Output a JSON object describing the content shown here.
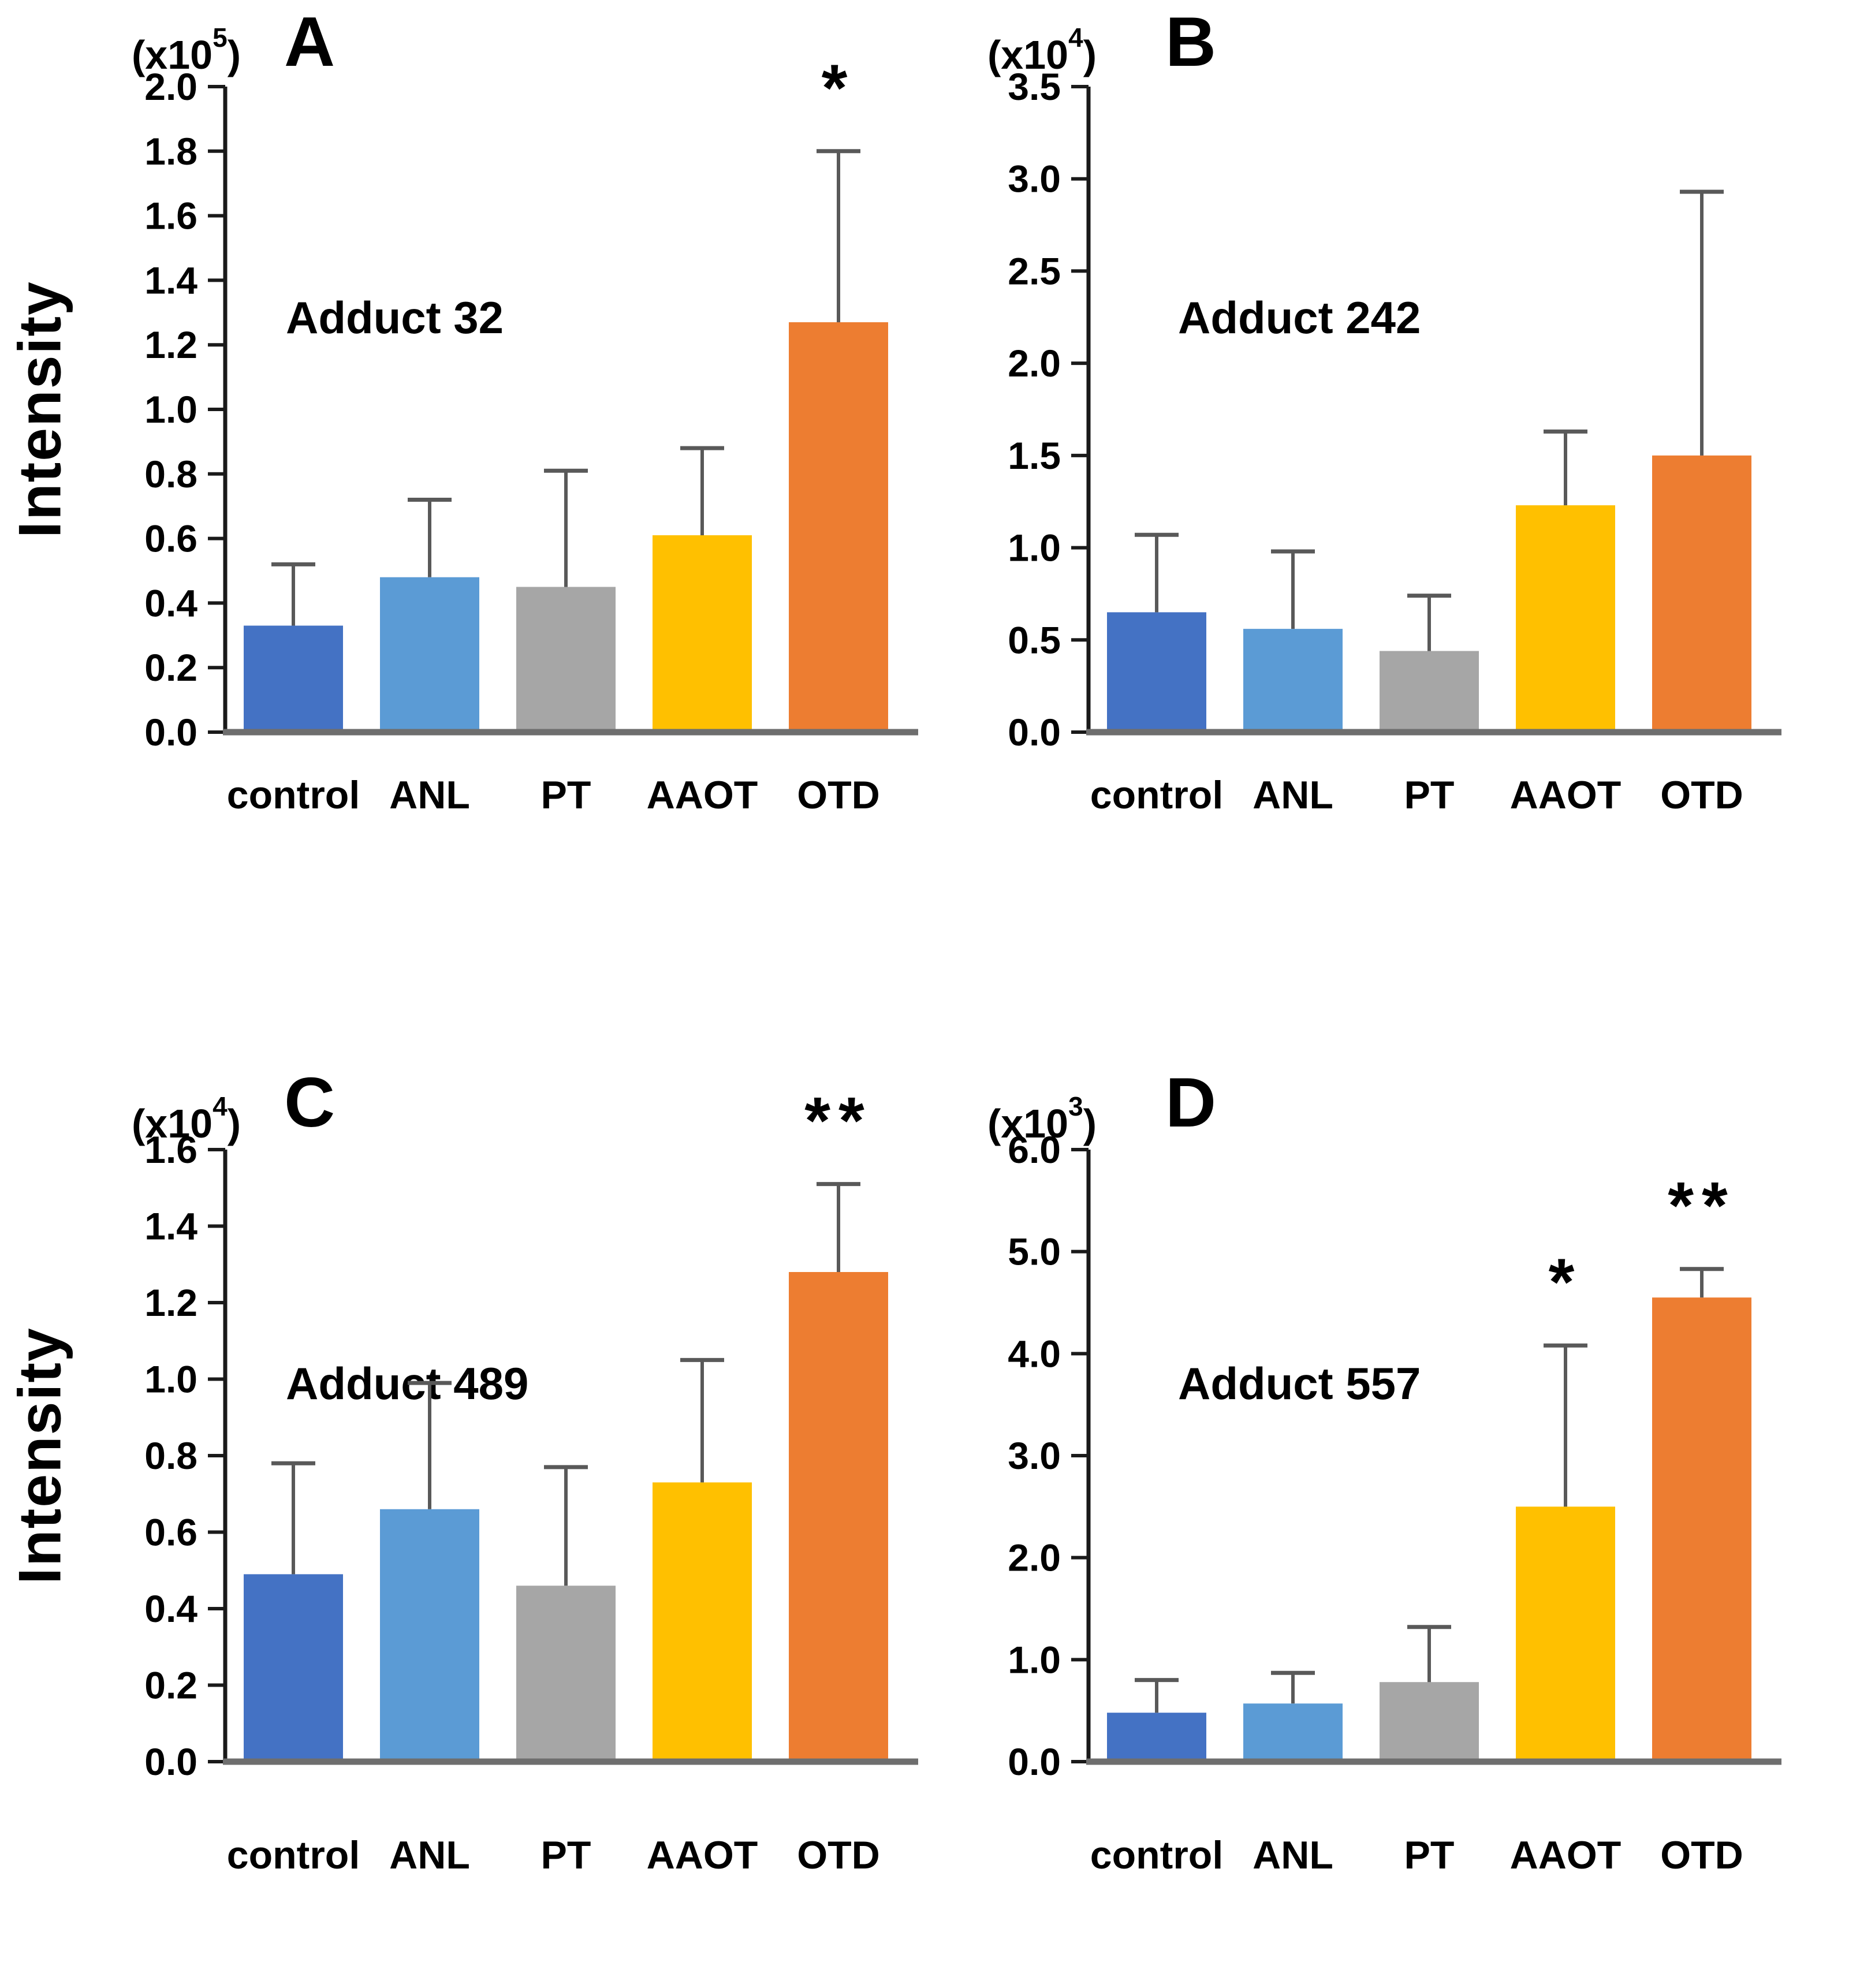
{
  "figure": {
    "y_axis_label": "Intensity",
    "background_color": "#ffffff",
    "text_color": "#000000",
    "axis_color": "#1a1a1a",
    "baseline_color": "#6e6e6e",
    "error_bar_color": "#595959",
    "categories": [
      "control",
      "ANL",
      "PT",
      "AAOT",
      "OTD"
    ],
    "bar_colors": [
      "#4472C4",
      "#5B9BD5",
      "#A6A6A6",
      "#FFC000",
      "#ED7D31"
    ]
  },
  "chart_data": [
    {
      "type": "bar",
      "panel": "A",
      "title": "Adduct 32",
      "scale_prefix": "(x10",
      "scale_exp": "5",
      "scale_suffix": ")",
      "unit_multiplier": "x10^5",
      "categories": [
        "control",
        "ANL",
        "PT",
        "AAOT",
        "OTD"
      ],
      "values": [
        0.33,
        0.48,
        0.45,
        0.61,
        1.27
      ],
      "error_upper": [
        0.19,
        0.24,
        0.36,
        0.27,
        0.53
      ],
      "significance": [
        "",
        "",
        "",
        "",
        "*"
      ],
      "ylabel": "Intensity",
      "xlabel": "",
      "ylim": [
        0,
        2.0
      ],
      "ytick_step": 0.2,
      "grid": false,
      "legend": false,
      "error_bars": "upper-only"
    },
    {
      "type": "bar",
      "panel": "B",
      "title": "Adduct 242",
      "scale_prefix": "(x10",
      "scale_exp": "4",
      "scale_suffix": ")",
      "unit_multiplier": "x10^4",
      "categories": [
        "control",
        "ANL",
        "PT",
        "AAOT",
        "OTD"
      ],
      "values": [
        0.65,
        0.56,
        0.44,
        1.23,
        1.5
      ],
      "error_upper": [
        0.42,
        0.42,
        0.3,
        0.4,
        1.43
      ],
      "significance": [
        "",
        "",
        "",
        "",
        ""
      ],
      "ylabel": "Intensity",
      "xlabel": "",
      "ylim": [
        0,
        3.5
      ],
      "ytick_step": 0.5,
      "grid": false,
      "legend": false,
      "error_bars": "upper-only"
    },
    {
      "type": "bar",
      "panel": "C",
      "title": "Adduct 489",
      "scale_prefix": "(x10",
      "scale_exp": "4",
      "scale_suffix": ")",
      "unit_multiplier": "x10^4",
      "categories": [
        "control",
        "ANL",
        "PT",
        "AAOT",
        "OTD"
      ],
      "values": [
        0.49,
        0.66,
        0.46,
        0.73,
        1.28
      ],
      "error_upper": [
        0.29,
        0.33,
        0.31,
        0.32,
        0.23
      ],
      "significance": [
        "",
        "",
        "",
        "",
        "**"
      ],
      "ylabel": "Intensity",
      "xlabel": "",
      "ylim": [
        0,
        1.6
      ],
      "ytick_step": 0.2,
      "grid": false,
      "legend": false,
      "error_bars": "upper-only"
    },
    {
      "type": "bar",
      "panel": "D",
      "title": "Adduct 557",
      "scale_prefix": "(x10",
      "scale_exp": "3",
      "scale_suffix": ")",
      "unit_multiplier": "x10^3",
      "categories": [
        "control",
        "ANL",
        "PT",
        "AAOT",
        "OTD"
      ],
      "values": [
        0.48,
        0.57,
        0.78,
        2.5,
        4.55
      ],
      "error_upper": [
        0.32,
        0.3,
        0.54,
        1.58,
        0.28
      ],
      "significance": [
        "",
        "",
        "",
        "*",
        "**"
      ],
      "ylabel": "Intensity",
      "xlabel": "",
      "ylim": [
        0,
        6.0
      ],
      "ytick_step": 1.0,
      "grid": false,
      "legend": false,
      "error_bars": "upper-only"
    }
  ]
}
